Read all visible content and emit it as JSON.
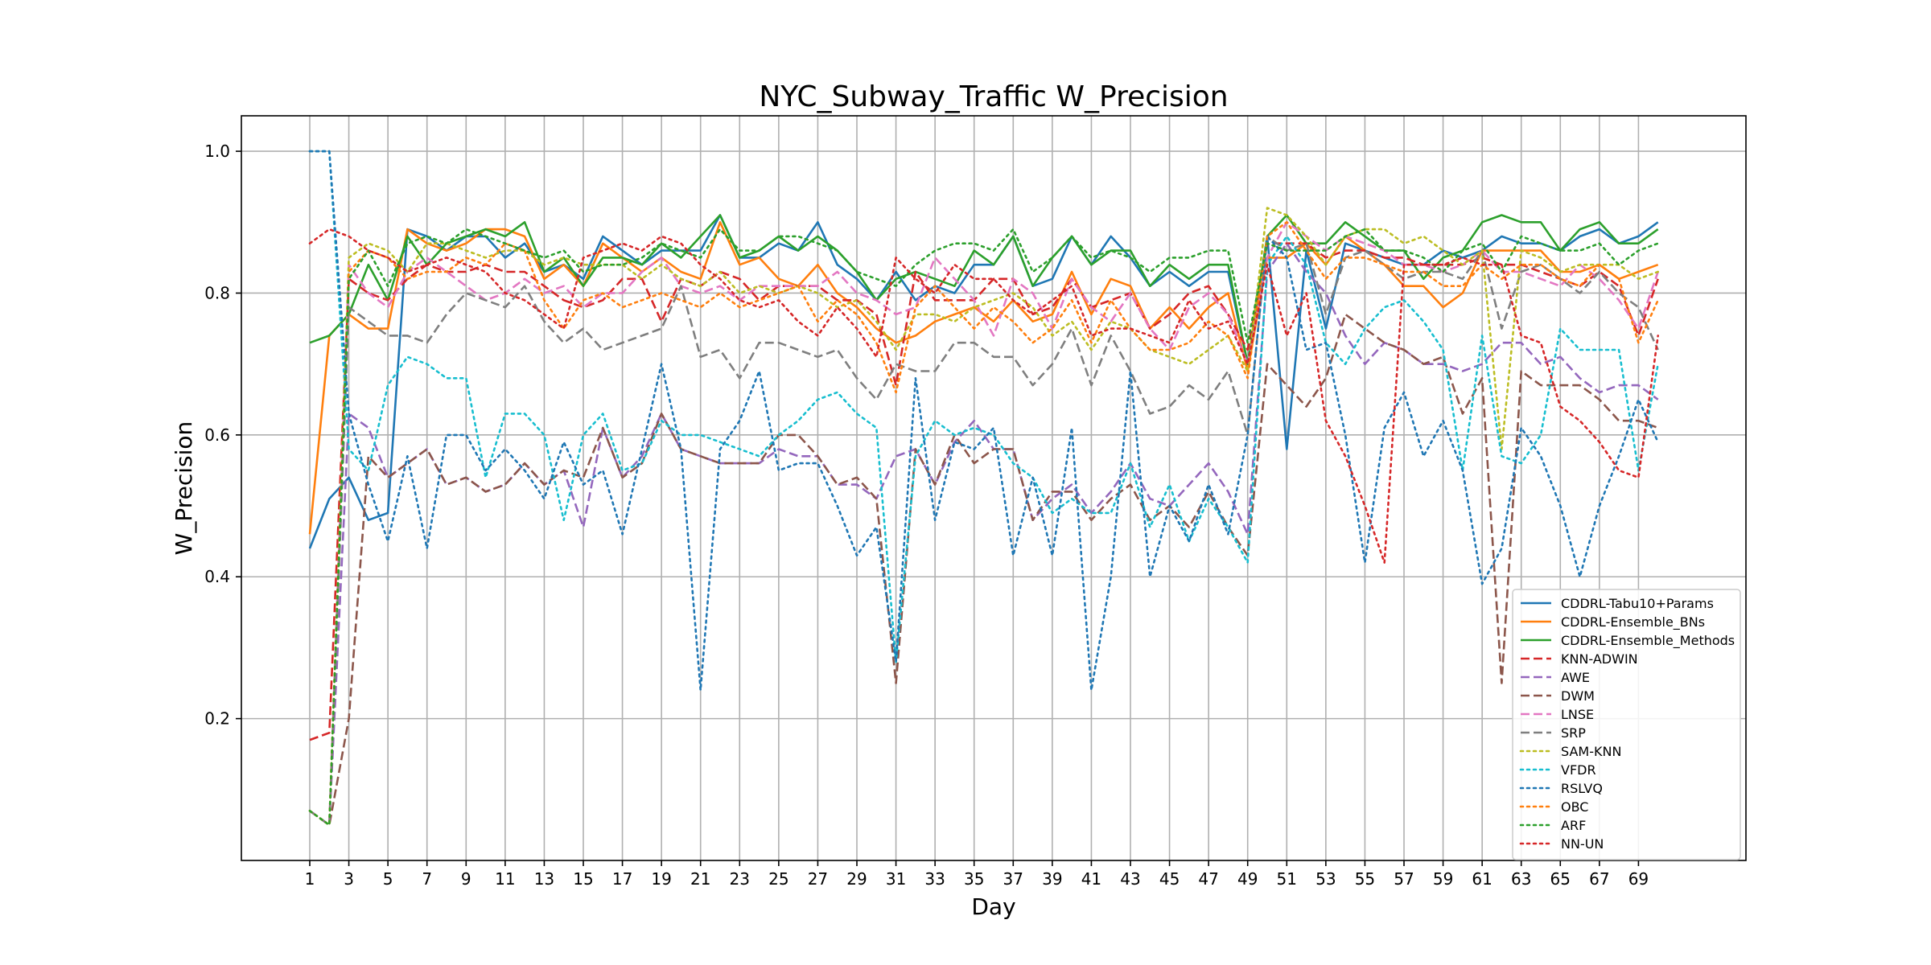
{
  "chart_data": {
    "type": "line",
    "title": "NYC_Subway_Traffic W_Precision",
    "xlabel": "Day",
    "ylabel": "W_Precision",
    "xlim": [
      -2.5,
      74.5
    ],
    "ylim": [
      0.0,
      1.05
    ],
    "xticks": [
      "1",
      "3",
      "5",
      "7",
      "9",
      "11",
      "13",
      "15",
      "17",
      "19",
      "21",
      "23",
      "25",
      "27",
      "29",
      "31",
      "33",
      "35",
      "37",
      "39",
      "41",
      "43",
      "45",
      "47",
      "49",
      "51",
      "53",
      "55",
      "57",
      "59",
      "61",
      "63",
      "65",
      "67",
      "69"
    ],
    "yticks": [
      "0.2",
      "0.4",
      "0.6",
      "0.8",
      "1.0"
    ],
    "grid": true,
    "legend_position": "lower right",
    "series": [
      {
        "name": "CDDRL-Tabu10+Params",
        "color": "#1f77b4",
        "style": "solid",
        "values": [
          0.44,
          0.51,
          0.54,
          0.48,
          0.49,
          0.89,
          0.88,
          0.86,
          0.88,
          0.88,
          0.85,
          0.87,
          0.83,
          0.84,
          0.82,
          0.88,
          0.86,
          0.84,
          0.86,
          0.86,
          0.86,
          0.91,
          0.85,
          0.85,
          0.87,
          0.86,
          0.9,
          0.84,
          0.82,
          0.79,
          0.83,
          0.79,
          0.81,
          0.8,
          0.84,
          0.84,
          0.88,
          0.81,
          0.82,
          0.88,
          0.84,
          0.88,
          0.85,
          0.81,
          0.83,
          0.81,
          0.83,
          0.83,
          0.7,
          0.88,
          0.58,
          0.86,
          0.75,
          0.87,
          0.86,
          0.85,
          0.84,
          0.84,
          0.86,
          0.85,
          0.86,
          0.88,
          0.87,
          0.87,
          0.86,
          0.88,
          0.89,
          0.87,
          0.88,
          0.9
        ]
      },
      {
        "name": "CDDRL-Ensemble_BNs",
        "color": "#ff7f0e",
        "style": "solid",
        "values": [
          0.46,
          0.74,
          0.77,
          0.75,
          0.75,
          0.89,
          0.87,
          0.86,
          0.87,
          0.89,
          0.89,
          0.88,
          0.82,
          0.84,
          0.81,
          0.87,
          0.85,
          0.83,
          0.85,
          0.83,
          0.82,
          0.9,
          0.84,
          0.85,
          0.82,
          0.81,
          0.84,
          0.8,
          0.78,
          0.75,
          0.73,
          0.74,
          0.76,
          0.77,
          0.78,
          0.76,
          0.79,
          0.76,
          0.77,
          0.83,
          0.77,
          0.82,
          0.81,
          0.75,
          0.78,
          0.75,
          0.78,
          0.8,
          0.69,
          0.85,
          0.85,
          0.87,
          0.84,
          0.88,
          0.86,
          0.84,
          0.81,
          0.81,
          0.78,
          0.8,
          0.86,
          0.86,
          0.86,
          0.86,
          0.83,
          0.83,
          0.84,
          0.82,
          0.83,
          0.84
        ]
      },
      {
        "name": "CDDRL-Ensemble_Methods",
        "color": "#2ca02c",
        "style": "solid",
        "values": [
          0.73,
          0.74,
          0.77,
          0.84,
          0.79,
          0.88,
          0.84,
          0.87,
          0.88,
          0.89,
          0.88,
          0.9,
          0.83,
          0.85,
          0.81,
          0.85,
          0.85,
          0.84,
          0.87,
          0.85,
          0.88,
          0.91,
          0.85,
          0.86,
          0.88,
          0.86,
          0.88,
          0.86,
          0.83,
          0.79,
          0.82,
          0.83,
          0.82,
          0.81,
          0.86,
          0.84,
          0.88,
          0.81,
          0.85,
          0.88,
          0.84,
          0.86,
          0.86,
          0.81,
          0.84,
          0.82,
          0.84,
          0.84,
          0.7,
          0.88,
          0.91,
          0.87,
          0.87,
          0.9,
          0.88,
          0.86,
          0.86,
          0.82,
          0.85,
          0.86,
          0.9,
          0.91,
          0.9,
          0.9,
          0.86,
          0.89,
          0.9,
          0.87,
          0.87,
          0.89
        ]
      },
      {
        "name": "KNN-ADWIN",
        "color": "#d62728",
        "style": "dashed",
        "values": [
          0.17,
          0.18,
          0.82,
          0.8,
          0.79,
          0.82,
          0.84,
          0.83,
          0.83,
          0.84,
          0.83,
          0.83,
          0.81,
          0.79,
          0.78,
          0.79,
          0.82,
          0.82,
          0.76,
          0.82,
          0.81,
          0.83,
          0.82,
          0.79,
          0.81,
          0.81,
          0.81,
          0.79,
          0.79,
          0.77,
          0.67,
          0.83,
          0.79,
          0.79,
          0.79,
          0.82,
          0.82,
          0.77,
          0.78,
          0.82,
          0.78,
          0.79,
          0.8,
          0.75,
          0.77,
          0.8,
          0.81,
          0.77,
          0.72,
          0.87,
          0.87,
          0.87,
          0.85,
          0.86,
          0.86,
          0.85,
          0.85,
          0.84,
          0.84,
          0.84,
          0.85,
          0.84,
          0.84,
          0.83,
          0.82,
          0.81,
          0.83,
          0.81,
          0.74,
          0.82
        ]
      },
      {
        "name": "AWE",
        "color": "#9467bd",
        "style": "dashed",
        "values": [
          0.07,
          0.05,
          0.63,
          0.61,
          0.54,
          0.56,
          0.58,
          0.53,
          0.54,
          0.52,
          0.53,
          0.56,
          0.53,
          0.55,
          0.47,
          0.61,
          0.54,
          0.57,
          0.63,
          0.58,
          0.57,
          0.56,
          0.56,
          0.56,
          0.58,
          0.57,
          0.57,
          0.53,
          0.53,
          0.51,
          0.57,
          0.58,
          0.53,
          0.59,
          0.62,
          0.58,
          0.58,
          0.48,
          0.51,
          0.53,
          0.49,
          0.52,
          0.56,
          0.51,
          0.5,
          0.53,
          0.56,
          0.52,
          0.46,
          0.83,
          0.87,
          0.83,
          0.8,
          0.74,
          0.7,
          0.73,
          0.72,
          0.7,
          0.7,
          0.69,
          0.7,
          0.73,
          0.73,
          0.7,
          0.71,
          0.68,
          0.66,
          0.67,
          0.67,
          0.65
        ]
      },
      {
        "name": "DWM",
        "color": "#8c564b",
        "style": "dashed",
        "values": [
          0.07,
          0.05,
          0.2,
          0.57,
          0.54,
          0.56,
          0.58,
          0.53,
          0.54,
          0.52,
          0.53,
          0.56,
          0.53,
          0.55,
          0.54,
          0.61,
          0.54,
          0.56,
          0.63,
          0.58,
          0.57,
          0.56,
          0.56,
          0.56,
          0.6,
          0.6,
          0.57,
          0.53,
          0.54,
          0.51,
          0.25,
          0.58,
          0.53,
          0.6,
          0.56,
          0.58,
          0.58,
          0.48,
          0.52,
          0.52,
          0.48,
          0.51,
          0.53,
          0.48,
          0.5,
          0.47,
          0.52,
          0.47,
          0.43,
          0.7,
          0.67,
          0.64,
          0.68,
          0.77,
          0.75,
          0.73,
          0.72,
          0.7,
          0.71,
          0.63,
          0.68,
          0.25,
          0.69,
          0.67,
          0.67,
          0.67,
          0.65,
          0.62,
          0.62,
          0.61
        ]
      },
      {
        "name": "LNSE",
        "color": "#e377c2",
        "style": "dashed",
        "values": [
          0.07,
          0.05,
          0.84,
          0.8,
          0.78,
          0.83,
          0.85,
          0.83,
          0.81,
          0.79,
          0.8,
          0.82,
          0.8,
          0.81,
          0.78,
          0.8,
          0.8,
          0.83,
          0.85,
          0.81,
          0.8,
          0.81,
          0.79,
          0.81,
          0.81,
          0.81,
          0.81,
          0.83,
          0.8,
          0.79,
          0.77,
          0.78,
          0.85,
          0.82,
          0.79,
          0.74,
          0.82,
          0.8,
          0.75,
          0.82,
          0.78,
          0.76,
          0.8,
          0.75,
          0.72,
          0.78,
          0.8,
          0.77,
          0.7,
          0.85,
          0.9,
          0.88,
          0.86,
          0.88,
          0.87,
          0.86,
          0.84,
          0.84,
          0.83,
          0.84,
          0.86,
          0.83,
          0.83,
          0.82,
          0.81,
          0.84,
          0.82,
          0.79,
          0.75,
          0.83
        ]
      },
      {
        "name": "SRP",
        "color": "#7f7f7f",
        "style": "dashed",
        "values": [
          0.07,
          0.05,
          0.78,
          0.76,
          0.74,
          0.74,
          0.73,
          0.77,
          0.8,
          0.79,
          0.78,
          0.81,
          0.76,
          0.73,
          0.75,
          0.72,
          0.73,
          0.74,
          0.75,
          0.81,
          0.71,
          0.72,
          0.68,
          0.73,
          0.73,
          0.72,
          0.71,
          0.72,
          0.68,
          0.65,
          0.7,
          0.69,
          0.69,
          0.73,
          0.73,
          0.71,
          0.71,
          0.67,
          0.7,
          0.75,
          0.67,
          0.74,
          0.69,
          0.63,
          0.64,
          0.67,
          0.65,
          0.69,
          0.6,
          0.88,
          0.86,
          0.87,
          0.77,
          0.85,
          0.86,
          0.84,
          0.82,
          0.83,
          0.83,
          0.82,
          0.86,
          0.75,
          0.83,
          0.84,
          0.82,
          0.8,
          0.83,
          0.8,
          0.78,
          0.72
        ]
      },
      {
        "name": "SAM-KNN",
        "color": "#bcbd22",
        "style": "dotted",
        "values": [
          0.07,
          0.05,
          0.85,
          0.87,
          0.86,
          0.83,
          0.87,
          0.87,
          0.86,
          0.85,
          0.86,
          0.86,
          0.84,
          0.85,
          0.84,
          0.84,
          0.84,
          0.82,
          0.84,
          0.82,
          0.81,
          0.83,
          0.8,
          0.81,
          0.8,
          0.81,
          0.8,
          0.78,
          0.79,
          0.76,
          0.72,
          0.77,
          0.77,
          0.76,
          0.78,
          0.79,
          0.8,
          0.78,
          0.74,
          0.76,
          0.72,
          0.76,
          0.75,
          0.72,
          0.71,
          0.7,
          0.72,
          0.74,
          0.69,
          0.92,
          0.91,
          0.88,
          0.84,
          0.88,
          0.89,
          0.89,
          0.87,
          0.88,
          0.86,
          0.84,
          0.86,
          0.58,
          0.86,
          0.85,
          0.83,
          0.84,
          0.84,
          0.84,
          0.82,
          0.83
        ]
      },
      {
        "name": "VFDR",
        "color": "#17becf",
        "style": "dotted",
        "values": [
          1.0,
          1.0,
          0.58,
          0.55,
          0.67,
          0.71,
          0.7,
          0.68,
          0.68,
          0.54,
          0.63,
          0.63,
          0.6,
          0.48,
          0.6,
          0.63,
          0.55,
          0.56,
          0.62,
          0.6,
          0.6,
          0.59,
          0.58,
          0.57,
          0.6,
          0.62,
          0.65,
          0.66,
          0.63,
          0.61,
          0.28,
          0.57,
          0.62,
          0.6,
          0.61,
          0.6,
          0.56,
          0.54,
          0.49,
          0.51,
          0.49,
          0.49,
          0.56,
          0.47,
          0.53,
          0.45,
          0.51,
          0.47,
          0.42,
          0.84,
          0.88,
          0.84,
          0.73,
          0.7,
          0.75,
          0.78,
          0.79,
          0.76,
          0.72,
          0.55,
          0.74,
          0.57,
          0.56,
          0.6,
          0.75,
          0.72,
          0.72,
          0.72,
          0.55,
          0.7
        ]
      },
      {
        "name": "RSLVQ",
        "color": "#1f77b4",
        "style": "dotted",
        "values": [
          1.0,
          1.0,
          0.63,
          0.53,
          0.45,
          0.57,
          0.44,
          0.6,
          0.6,
          0.55,
          0.58,
          0.55,
          0.51,
          0.59,
          0.53,
          0.55,
          0.46,
          0.58,
          0.7,
          0.58,
          0.24,
          0.58,
          0.62,
          0.69,
          0.55,
          0.56,
          0.56,
          0.5,
          0.43,
          0.47,
          0.28,
          0.68,
          0.48,
          0.59,
          0.58,
          0.61,
          0.43,
          0.54,
          0.43,
          0.61,
          0.24,
          0.4,
          0.69,
          0.4,
          0.5,
          0.45,
          0.53,
          0.46,
          0.6,
          0.88,
          0.85,
          0.72,
          0.73,
          0.6,
          0.42,
          0.61,
          0.66,
          0.57,
          0.62,
          0.55,
          0.39,
          0.44,
          0.61,
          0.57,
          0.5,
          0.4,
          0.5,
          0.57,
          0.65,
          0.59
        ]
      },
      {
        "name": "OBC",
        "color": "#ff7f0e",
        "style": "dotted",
        "values": [
          0.07,
          0.05,
          0.83,
          0.86,
          0.85,
          0.82,
          0.83,
          0.83,
          0.85,
          0.84,
          0.87,
          0.86,
          0.79,
          0.75,
          0.79,
          0.8,
          0.78,
          0.79,
          0.8,
          0.79,
          0.78,
          0.8,
          0.78,
          0.79,
          0.8,
          0.81,
          0.76,
          0.79,
          0.77,
          0.73,
          0.66,
          0.78,
          0.81,
          0.78,
          0.75,
          0.78,
          0.76,
          0.73,
          0.75,
          0.79,
          0.73,
          0.79,
          0.75,
          0.72,
          0.72,
          0.73,
          0.76,
          0.74,
          0.68,
          0.88,
          0.9,
          0.86,
          0.82,
          0.85,
          0.85,
          0.84,
          0.83,
          0.83,
          0.81,
          0.81,
          0.84,
          0.82,
          0.84,
          0.84,
          0.82,
          0.81,
          0.84,
          0.82,
          0.73,
          0.79
        ]
      },
      {
        "name": "ARF",
        "color": "#2ca02c",
        "style": "dotted",
        "values": [
          0.07,
          0.05,
          0.82,
          0.86,
          0.81,
          0.87,
          0.88,
          0.87,
          0.89,
          0.88,
          0.87,
          0.86,
          0.85,
          0.86,
          0.83,
          0.84,
          0.84,
          0.85,
          0.87,
          0.86,
          0.85,
          0.89,
          0.86,
          0.86,
          0.88,
          0.88,
          0.87,
          0.86,
          0.83,
          0.82,
          0.81,
          0.84,
          0.86,
          0.87,
          0.87,
          0.86,
          0.89,
          0.83,
          0.85,
          0.88,
          0.85,
          0.86,
          0.85,
          0.83,
          0.85,
          0.85,
          0.86,
          0.86,
          0.73,
          0.87,
          0.86,
          0.86,
          0.86,
          0.88,
          0.89,
          0.86,
          0.86,
          0.85,
          0.83,
          0.86,
          0.87,
          0.83,
          0.88,
          0.87,
          0.86,
          0.86,
          0.87,
          0.84,
          0.86,
          0.87
        ]
      },
      {
        "name": "NN-UN",
        "color": "#d62728",
        "style": "dotted",
        "values": [
          0.87,
          0.89,
          0.88,
          0.86,
          0.85,
          0.83,
          0.84,
          0.85,
          0.84,
          0.83,
          0.8,
          0.79,
          0.77,
          0.75,
          0.85,
          0.86,
          0.87,
          0.86,
          0.88,
          0.87,
          0.84,
          0.82,
          0.79,
          0.78,
          0.79,
          0.76,
          0.74,
          0.78,
          0.75,
          0.71,
          0.85,
          0.82,
          0.8,
          0.84,
          0.82,
          0.82,
          0.79,
          0.77,
          0.79,
          0.81,
          0.74,
          0.75,
          0.75,
          0.74,
          0.73,
          0.79,
          0.75,
          0.76,
          0.7,
          0.84,
          0.74,
          0.8,
          0.62,
          0.57,
          0.5,
          0.42,
          0.84,
          0.84,
          0.84,
          0.85,
          0.84,
          0.84,
          0.74,
          0.73,
          0.64,
          0.62,
          0.59,
          0.55,
          0.54,
          0.74
        ]
      }
    ]
  }
}
